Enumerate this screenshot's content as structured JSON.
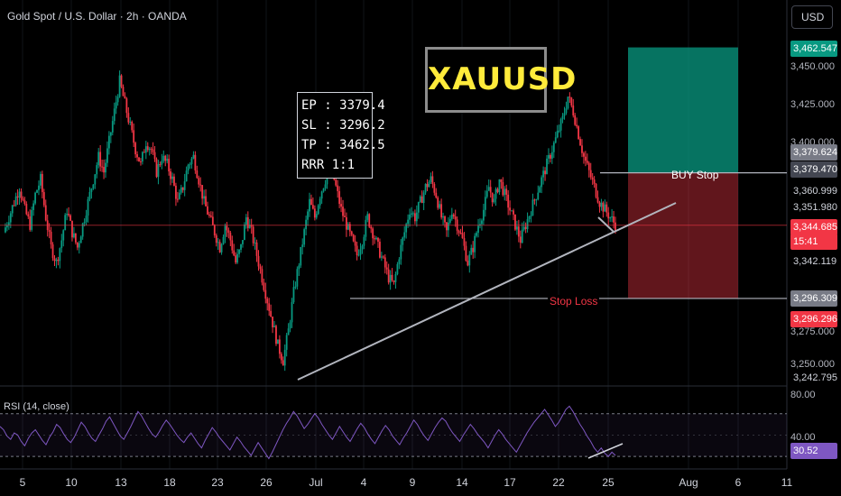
{
  "header": {
    "symbol_title": "Gold Spot / U.S. Dollar · 2h · OANDA",
    "currency_button": "USD"
  },
  "annotations": {
    "xauusd_title": "XAUUSD",
    "trade_box": [
      "EP : 3379.4",
      "SL : 3296.2",
      "TP : 3462.5",
      "RRR 1:1"
    ],
    "buy_stop_label": "BUY Stop",
    "stop_loss_label": "Stop Loss"
  },
  "rsi": {
    "label": "RSI (14, close)",
    "current_value": "30.52",
    "axis_ticks": [
      "80.00",
      "40.00"
    ],
    "series": [
      58,
      55,
      49,
      46,
      52,
      50,
      44,
      40,
      47,
      52,
      55,
      50,
      45,
      41,
      48,
      53,
      60,
      57,
      51,
      46,
      43,
      48,
      55,
      62,
      58,
      52,
      47,
      44,
      50,
      56,
      63,
      67,
      61,
      55,
      49,
      46,
      52,
      58,
      65,
      72,
      68,
      62,
      56,
      51,
      48,
      53,
      59,
      64,
      60,
      55,
      50,
      46,
      43,
      48,
      52,
      47,
      42,
      38,
      45,
      51,
      57,
      53,
      48,
      44,
      40,
      36,
      42,
      48,
      44,
      39,
      35,
      31,
      37,
      43,
      38,
      33,
      28,
      34,
      41,
      48,
      55,
      61,
      66,
      72,
      68,
      62,
      56,
      60,
      65,
      70,
      66,
      60,
      55,
      50,
      46,
      52,
      58,
      53,
      48,
      44,
      50,
      56,
      61,
      57,
      51,
      46,
      42,
      48,
      54,
      59,
      55,
      49,
      45,
      41,
      47,
      52,
      58,
      64,
      60,
      54,
      49,
      45,
      51,
      57,
      62,
      66,
      63,
      57,
      52,
      48,
      44,
      50,
      55,
      60,
      56,
      51,
      47,
      43,
      38,
      44,
      50,
      55,
      51,
      46,
      42,
      38,
      34,
      40,
      46,
      52,
      57,
      62,
      66,
      70,
      74,
      69,
      64,
      58,
      62,
      68,
      74,
      77,
      72,
      66,
      60,
      55,
      49,
      44,
      38,
      34,
      38,
      33,
      30,
      34,
      31
    ]
  },
  "price_axis": {
    "ticks": [
      "3,450.000",
      "3,425.000",
      "3,400.000",
      "3,275.000",
      "3,250.000"
    ],
    "tags": [
      {
        "text": "3,462.547",
        "color": "#089981"
      },
      {
        "text": "3,379.624",
        "color": "#787b86"
      },
      {
        "text": "3,379.470",
        "color": "#434651"
      },
      {
        "text": "3,360.999",
        "color": "#000000"
      },
      {
        "text": "3,351.980",
        "color": "#000000"
      },
      {
        "text": "3,344.685",
        "color": "#f23645"
      },
      {
        "text": "15:41",
        "color": "#f23645"
      },
      {
        "text": "3,342.119",
        "color": "#000000"
      },
      {
        "text": "3,296.309",
        "color": "#787b86"
      },
      {
        "text": "3,296.296",
        "color": "#f23645"
      },
      {
        "text": "3,242.795",
        "color": "#000000"
      }
    ]
  },
  "time_axis": {
    "labels": [
      "5",
      "10",
      "13",
      "18",
      "23",
      "26",
      "Jul",
      "4",
      "9",
      "14",
      "17",
      "22",
      "25",
      "Aug",
      "6",
      "11"
    ]
  },
  "chart_data": {
    "type": "candlestick",
    "symbol": "XAUUSD",
    "timeframe": "2h",
    "ylim": [
      3240,
      3470
    ],
    "close_path": [
      3340,
      3350,
      3360,
      3370,
      3355,
      3345,
      3365,
      3375,
      3350,
      3330,
      3320,
      3335,
      3355,
      3340,
      3330,
      3345,
      3360,
      3375,
      3390,
      3380,
      3400,
      3420,
      3440,
      3425,
      3410,
      3395,
      3385,
      3400,
      3395,
      3380,
      3390,
      3385,
      3375,
      3360,
      3370,
      3385,
      3390,
      3375,
      3360,
      3350,
      3340,
      3330,
      3345,
      3335,
      3320,
      3330,
      3350,
      3340,
      3325,
      3310,
      3295,
      3280,
      3265,
      3255,
      3275,
      3300,
      3320,
      3340,
      3360,
      3350,
      3365,
      3375,
      3385,
      3370,
      3355,
      3345,
      3335,
      3325,
      3335,
      3350,
      3340,
      3330,
      3320,
      3310,
      3305,
      3325,
      3340,
      3355,
      3350,
      3360,
      3370,
      3375,
      3365,
      3350,
      3340,
      3355,
      3345,
      3335,
      3320,
      3330,
      3345,
      3355,
      3370,
      3360,
      3375,
      3365,
      3355,
      3345,
      3335,
      3345,
      3355,
      3365,
      3375,
      3385,
      3395,
      3405,
      3415,
      3430,
      3420,
      3405,
      3390,
      3380,
      3370,
      3360,
      3355,
      3350,
      3345
    ],
    "entry": 3379.4,
    "stop_loss": 3296.2,
    "take_profit": 3462.5,
    "current_price": 3344.685,
    "long_position": {
      "profit_color": "#089981",
      "loss_color": "#f23645"
    },
    "trendline_color": "#b2b5be",
    "candle_colors": {
      "up": "#089981",
      "down": "#f23645"
    }
  }
}
